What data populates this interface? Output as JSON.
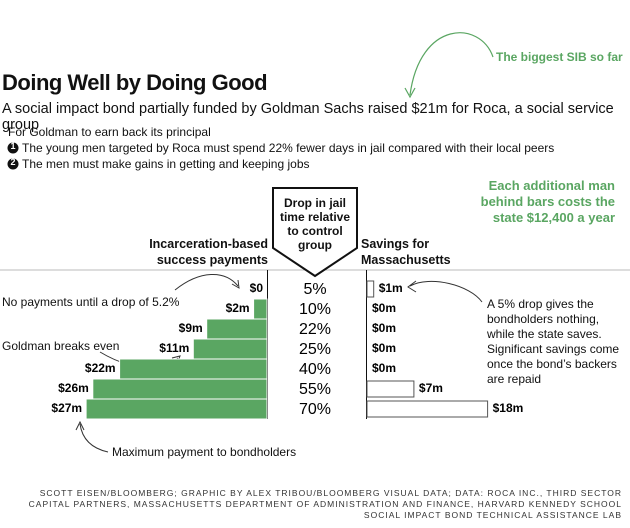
{
  "chart_data": {
    "type": "stair",
    "title": "Doing Well by Doing Good",
    "subtitle": "A social impact bond partially funded by Goldman Sachs raised $21m for Roca, a social service group",
    "criteria_intro": "For Goldman to earn back its principal",
    "criteria": [
      {
        "marker": "1",
        "text": "The young men targeted by Roca must spend 22% fewer days in jail compared with their local peers"
      },
      {
        "marker": "2",
        "text": "The men must make gains in getting and keeping jobs"
      }
    ],
    "center_header": "Drop in jail time relative to control group",
    "categories": [
      "5%",
      "10%",
      "22%",
      "25%",
      "40%",
      "55%",
      "70%"
    ],
    "series": [
      {
        "name": "Incarceration-based success payments",
        "color": "#5aa662",
        "values": [
          0,
          2,
          9,
          11,
          22,
          26,
          27
        ],
        "value_labels": [
          "$0",
          "$2m",
          "$9m",
          "$11m",
          "$22m",
          "$26m",
          "$27m"
        ]
      },
      {
        "name": "Savings for Massachusetts",
        "color": "#ffffff",
        "values": [
          1,
          0,
          0,
          0,
          0,
          7,
          18
        ],
        "value_labels": [
          "$1m",
          "$0m",
          "$0m",
          "$0m",
          "$0m",
          "$7m",
          "$18m"
        ]
      }
    ],
    "annotations": {
      "biggest": "The biggest SIB so far",
      "cost": "Each additional man behind bars costs the state $12,400 a year",
      "no_payments": "No payments until a drop of 5.2%",
      "break_even": "Goldman breaks even",
      "maximum": "Maximum payment to bondholders",
      "savings_note": "A 5% drop gives the bondholders nothing, while the state saves. Significant savings come once the bond’s backers are repaid"
    },
    "source": "SCOTT EISEN/BLOOMBERG; GRAPHIC BY ALEX TRIBOU/BLOOMBERG VISUAL DATA; DATA: ROCA INC., THIRD SECTOR CAPITAL PARTNERS, MASSACHUSETTS DEPARTMENT OF ADMINISTRATION AND FINANCE, HARVARD KENNEDY SCHOOL SOCIAL IMPACT BOND TECHNICAL ASSISTANCE LAB"
  }
}
